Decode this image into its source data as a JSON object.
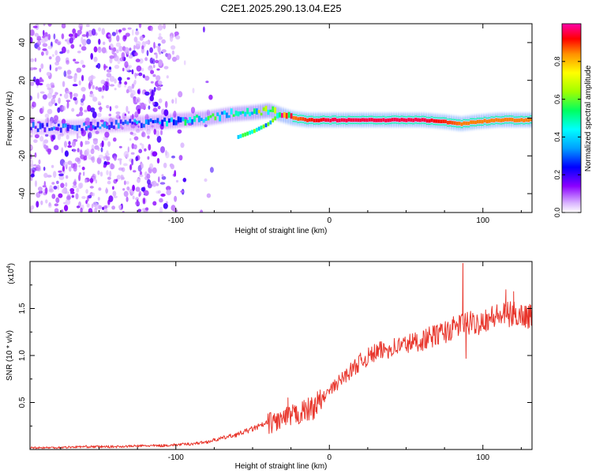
{
  "page": {
    "title": "C2E1.2025.290.13.04.E25"
  },
  "chart_data": [
    {
      "type": "heatmap",
      "title": "C2E1.2025.290.13.04.E25",
      "xlabel": "Height of straight line (km)",
      "ylabel": "Frequency (Hz)",
      "xlim": [
        -195,
        132
      ],
      "ylim": [
        -50,
        50
      ],
      "xticks": [
        -100,
        0,
        100
      ],
      "yticks": [
        -40,
        -20,
        0,
        20,
        40
      ],
      "xtick_labels": [
        "-100",
        "0",
        "100"
      ],
      "ytick_labels": [
        "-40",
        "-20",
        "0",
        "20",
        "40"
      ],
      "colorbar": {
        "label": "Normalized spectral amplitude",
        "range": [
          0.0,
          1.0
        ],
        "ticks": [
          0.0,
          0.2,
          0.4,
          0.6,
          0.8
        ],
        "tick_labels": [
          "0.0",
          "0.2",
          "0.4",
          "0.6",
          "0.8"
        ]
      },
      "ridge": {
        "x": [
          -195,
          -170,
          -150,
          -130,
          -110,
          -95,
          -80,
          -65,
          -50,
          -40,
          -33,
          -25,
          -15,
          0,
          20,
          40,
          60,
          75,
          85,
          95,
          110,
          132
        ],
        "freq": [
          -5,
          -5,
          -4,
          -3,
          -2,
          -1,
          0,
          2,
          3,
          4,
          2,
          0,
          -1,
          -1,
          -1,
          -1,
          -1,
          -2,
          -3,
          -2,
          -1,
          -1
        ],
        "amplitude": [
          0.25,
          0.3,
          0.3,
          0.35,
          0.4,
          0.45,
          0.5,
          0.55,
          0.6,
          0.7,
          0.8,
          0.85,
          0.9,
          0.95,
          0.95,
          0.95,
          0.95,
          0.9,
          0.85,
          0.85,
          0.85,
          0.85
        ]
      },
      "secondary_branch": {
        "x": [
          -60,
          -50,
          -40,
          -33
        ],
        "freq": [
          -10,
          -7,
          -3,
          2
        ]
      },
      "noise_region_x": [
        -195,
        -100
      ]
    },
    {
      "type": "line",
      "xlabel": "Height of straight line (km)",
      "ylabel": "SNR (10 * v/v)",
      "y_scale_label": "(x10",
      "y_scale_exp": "4",
      "y_scale_close": ")",
      "xlim": [
        -195,
        132
      ],
      "ylim": [
        0.0,
        2.0
      ],
      "xticks": [
        -100,
        0,
        100
      ],
      "yticks": [
        0.5,
        1.0,
        1.5
      ],
      "xtick_labels": [
        "-100",
        "0",
        "100"
      ],
      "ytick_labels": [
        "0.5",
        "1.0",
        "1.5"
      ],
      "series": [
        {
          "name": "SNR",
          "color": "#e8352b",
          "x": [
            -195,
            -180,
            -160,
            -140,
            -120,
            -110,
            -100,
            -90,
            -80,
            -70,
            -60,
            -50,
            -40,
            -30,
            -20,
            -10,
            0,
            10,
            20,
            25,
            30,
            40,
            50,
            60,
            70,
            80,
            85,
            90,
            95,
            100,
            110,
            120,
            132
          ],
          "y": [
            0.02,
            0.02,
            0.03,
            0.03,
            0.04,
            0.04,
            0.05,
            0.06,
            0.08,
            0.12,
            0.16,
            0.22,
            0.28,
            0.32,
            0.38,
            0.45,
            0.62,
            0.78,
            0.93,
            0.98,
            1.03,
            1.08,
            1.12,
            1.16,
            1.22,
            1.28,
            1.33,
            1.35,
            1.33,
            1.38,
            1.42,
            1.44,
            1.42
          ]
        }
      ],
      "spikes": [
        {
          "x": -27,
          "y": 0.55
        },
        {
          "x": -22,
          "y": 0.45
        },
        {
          "x": 87,
          "y": 1.98
        },
        {
          "x": 89,
          "y": 0.97
        },
        {
          "x": 115,
          "y": 1.7
        },
        {
          "x": 120,
          "y": 1.68
        }
      ]
    }
  ]
}
